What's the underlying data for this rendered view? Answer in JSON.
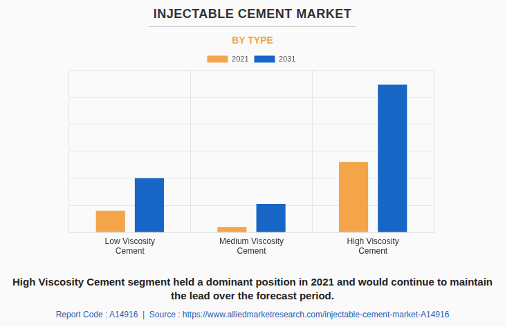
{
  "chart_data": {
    "type": "bar",
    "title": "INJECTABLE CEMENT MARKET",
    "subtitle": "BY TYPE",
    "categories": [
      "Low Viscosity Cement",
      "Medium Viscosity Cement",
      "High Viscosity Cement"
    ],
    "series": [
      {
        "name": "2021",
        "color": "#f4a54a",
        "values": [
          0.8,
          0.2,
          2.6
        ]
      },
      {
        "name": "2031",
        "color": "#1766c5",
        "values": [
          2.0,
          1.05,
          5.45
        ]
      }
    ],
    "ylim": [
      0,
      6
    ],
    "yticks": [
      0,
      1,
      2,
      3,
      4,
      5,
      6
    ],
    "grid": true,
    "legend": "top",
    "tick_labels": "x",
    "caption": "High Viscosity Cement segment held a dominant position in 2021 and would continue to maintain the lead over the forecast period.",
    "source": "Report Code : A14916  |  Source : https://www.alliedmarketresearch.com/injectable-cement-market-A14916"
  }
}
